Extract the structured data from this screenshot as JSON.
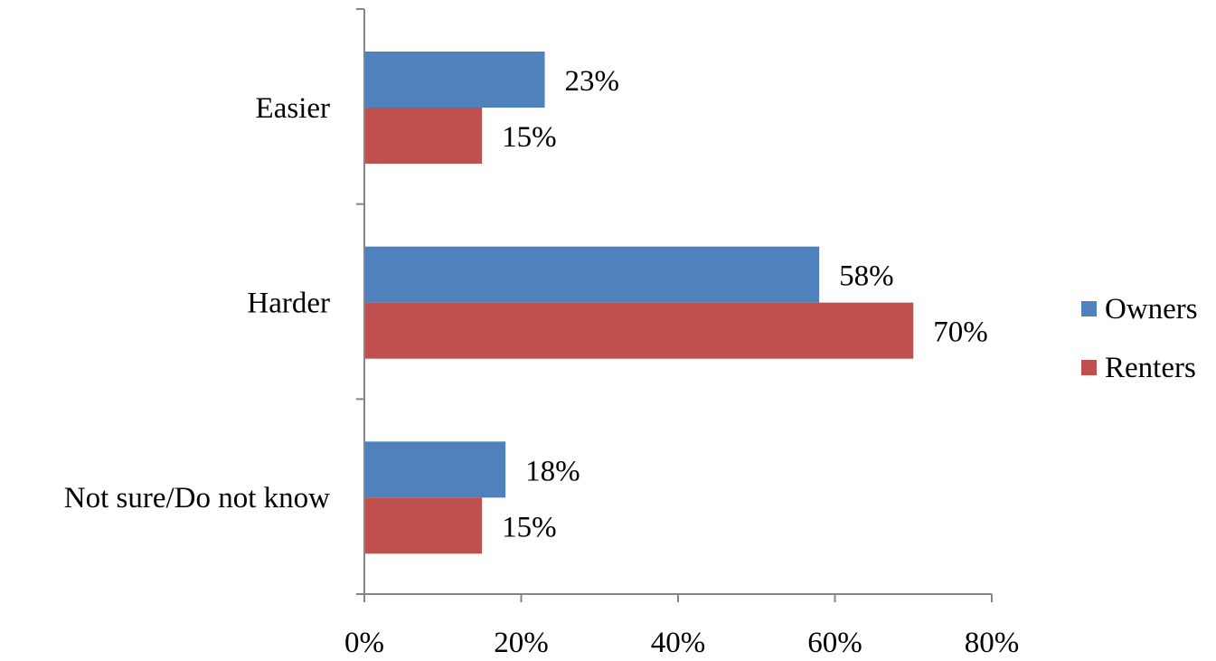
{
  "chart_data": {
    "type": "bar",
    "orientation": "horizontal",
    "categories": [
      "Easier",
      "Harder",
      "Not sure/Do not know"
    ],
    "series": [
      {
        "name": "Owners",
        "color": "#4f81bd",
        "values": [
          23,
          58,
          18
        ]
      },
      {
        "name": "Renters",
        "color": "#c0504d",
        "values": [
          15,
          70,
          15
        ]
      }
    ],
    "data_labels": [
      [
        "23%",
        "58%",
        "18%"
      ],
      [
        "15%",
        "70%",
        "15%"
      ]
    ],
    "x_ticks": [
      "0%",
      "20%",
      "40%",
      "60%",
      "80%"
    ],
    "xlim": [
      0,
      80
    ],
    "title": "",
    "xlabel": "",
    "ylabel": "",
    "grid": false,
    "legend_position": "right"
  }
}
